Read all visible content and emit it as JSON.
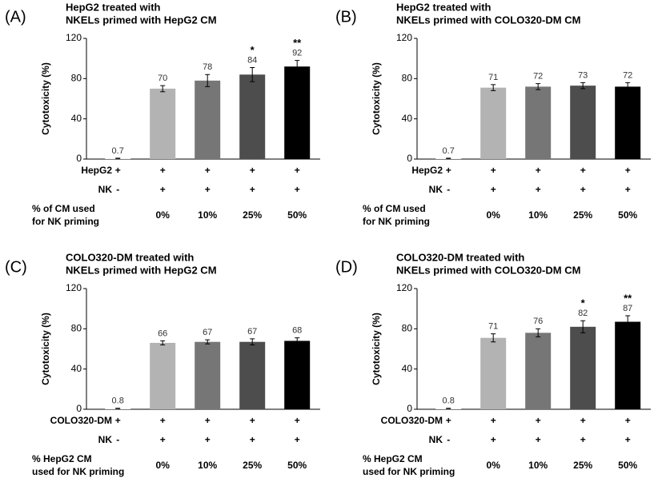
{
  "chart_data": [
    {
      "type": "bar",
      "panel": "(A)",
      "title": [
        "HepG2 treated with",
        "NKELs primed with HepG2 CM"
      ],
      "ylabel": "Cytotoxicity (%)",
      "ylim": [
        0,
        120
      ],
      "yticks": [
        0,
        40,
        80,
        120
      ],
      "values": [
        0.7,
        70,
        78,
        84,
        92
      ],
      "errors": [
        0.2,
        3,
        6,
        7,
        6
      ],
      "significance": [
        null,
        null,
        null,
        "*",
        "**"
      ],
      "colors": [
        "#f2f2f2",
        "#b3b3b3",
        "#767676",
        "#4d4d4d",
        "#000000"
      ],
      "rows": [
        {
          "label": [
            "HepG2"
          ],
          "cells": [
            "+",
            "+",
            "+",
            "+",
            "+"
          ]
        },
        {
          "label": [
            "NK"
          ],
          "cells": [
            "-",
            "+",
            "+",
            "+",
            "+"
          ]
        },
        {
          "label": [
            "% of CM used",
            "for NK priming"
          ],
          "cells": [
            null,
            "0%",
            "10%",
            "25%",
            "50%"
          ]
        }
      ]
    },
    {
      "type": "bar",
      "panel": "(B)",
      "title": [
        "HepG2 treated with",
        "NKELs primed with COLO320-DM CM"
      ],
      "ylabel": "Cytotoxicity (%)",
      "ylim": [
        0,
        120
      ],
      "yticks": [
        0,
        40,
        80,
        120
      ],
      "values": [
        0.7,
        71,
        72,
        73,
        72
      ],
      "errors": [
        0.2,
        3,
        3,
        3,
        4
      ],
      "significance": [
        null,
        null,
        null,
        null,
        null
      ],
      "colors": [
        "#f2f2f2",
        "#b3b3b3",
        "#767676",
        "#4d4d4d",
        "#000000"
      ],
      "rows": [
        {
          "label": [
            "HepG2"
          ],
          "cells": [
            "+",
            "+",
            "+",
            "+",
            "+"
          ]
        },
        {
          "label": [
            "NK"
          ],
          "cells": [
            "-",
            "+",
            "+",
            "+",
            "+"
          ]
        },
        {
          "label": [
            "% of CM used",
            "for NK priming"
          ],
          "cells": [
            null,
            "0%",
            "10%",
            "25%",
            "50%"
          ]
        }
      ]
    },
    {
      "type": "bar",
      "panel": "(C)",
      "title": [
        "COLO320-DM treated with",
        "NKELs primed with HepG2 CM"
      ],
      "ylabel": "Cytotoxicity (%)",
      "ylim": [
        0,
        120
      ],
      "yticks": [
        0,
        40,
        80,
        120
      ],
      "values": [
        0.8,
        66,
        67,
        67,
        68
      ],
      "errors": [
        0.2,
        2,
        2,
        3,
        3
      ],
      "significance": [
        null,
        null,
        null,
        null,
        null
      ],
      "colors": [
        "#f2f2f2",
        "#b3b3b3",
        "#767676",
        "#4d4d4d",
        "#000000"
      ],
      "rows": [
        {
          "label": [
            "COLO320-DM"
          ],
          "cells": [
            "+",
            "+",
            "+",
            "+",
            "+"
          ]
        },
        {
          "label": [
            "NK"
          ],
          "cells": [
            "-",
            "+",
            "+",
            "+",
            "+"
          ]
        },
        {
          "label": [
            "% HepG2 CM",
            "used for NK priming"
          ],
          "cells": [
            null,
            "0%",
            "10%",
            "25%",
            "50%"
          ]
        }
      ]
    },
    {
      "type": "bar",
      "panel": "(D)",
      "title": [
        "COLO320-DM treated with",
        "NKELs primed with COLO320-DM CM"
      ],
      "ylabel": "Cytotoxicity (%)",
      "ylim": [
        0,
        120
      ],
      "yticks": [
        0,
        40,
        80,
        120
      ],
      "values": [
        0.8,
        71,
        76,
        82,
        87
      ],
      "errors": [
        0.2,
        4,
        4,
        6,
        6
      ],
      "significance": [
        null,
        null,
        null,
        "*",
        "**"
      ],
      "colors": [
        "#f2f2f2",
        "#b3b3b3",
        "#767676",
        "#4d4d4d",
        "#000000"
      ],
      "rows": [
        {
          "label": [
            "COLO320-DM"
          ],
          "cells": [
            "+",
            "+",
            "+",
            "+",
            "+"
          ]
        },
        {
          "label": [
            "NK"
          ],
          "cells": [
            "-",
            "+",
            "+",
            "+",
            "+"
          ]
        },
        {
          "label": [
            "% HepG2 CM",
            "used for NK priming"
          ],
          "cells": [
            null,
            "0%",
            "10%",
            "25%",
            "50%"
          ]
        }
      ]
    }
  ]
}
